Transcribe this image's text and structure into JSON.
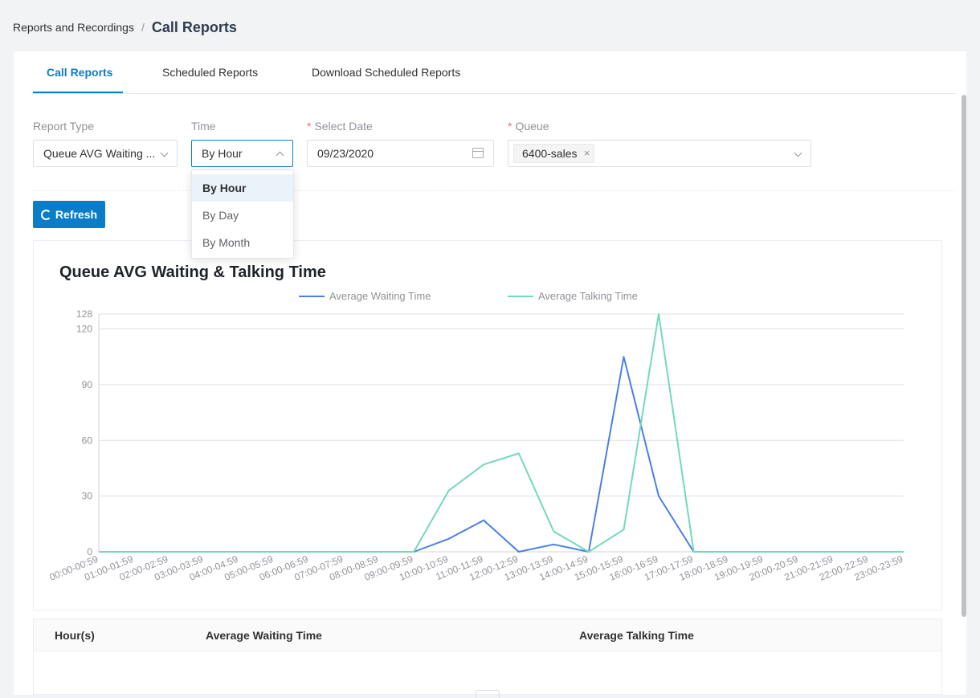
{
  "breadcrumb": {
    "parent": "Reports and Recordings",
    "separator": "/",
    "current": "Call Reports"
  },
  "tabs": [
    {
      "label": "Call Reports",
      "active": true
    },
    {
      "label": "Scheduled Reports",
      "active": false
    },
    {
      "label": "Download Scheduled Reports",
      "active": false
    }
  ],
  "filters": {
    "report_type": {
      "label": "Report Type",
      "value": "Queue AVG Waiting ..."
    },
    "time": {
      "label": "Time",
      "value": "By Hour"
    },
    "select_date": {
      "label": "Select Date",
      "required_mark": "*",
      "value": "09/23/2020"
    },
    "queue": {
      "label": "Queue",
      "required_mark": "*",
      "tag": "6400-sales",
      "tag_close": "×"
    }
  },
  "refresh_button": {
    "label": "Refresh"
  },
  "time_dropdown": {
    "options": [
      "By Hour",
      "By Day",
      "By Month"
    ],
    "selected": "By Hour"
  },
  "chart_data": {
    "type": "line",
    "title": "Queue AVG Waiting & Talking Time",
    "categories": [
      "00:00-00:59",
      "01:00-01:59",
      "02:00-02:59",
      "03:00-03:59",
      "04:00-04:59",
      "05:00-05:59",
      "06:00-06:59",
      "07:00-07:59",
      "08:00-08:59",
      "09:00-09:59",
      "10:00-10:59",
      "11:00-11:59",
      "12:00-12:59",
      "13:00-13:59",
      "14:00-14:59",
      "15:00-15:59",
      "16:00-16:59",
      "17:00-17:59",
      "18:00-18:59",
      "19:00-19:59",
      "20:00-20:59",
      "21:00-21:59",
      "22:00-22:59",
      "23:00-23:59"
    ],
    "series": [
      {
        "name": "Average Waiting Time",
        "color": "#4a7fe4",
        "values": [
          0,
          0,
          0,
          0,
          0,
          0,
          0,
          0,
          0,
          0,
          7,
          17,
          0,
          4,
          0,
          105,
          30,
          0,
          0,
          0,
          0,
          0,
          0,
          0
        ]
      },
      {
        "name": "Average Talking Time",
        "color": "#71dbb3",
        "values": [
          0,
          0,
          0,
          0,
          0,
          0,
          0,
          0,
          0,
          0,
          33,
          47,
          53,
          11,
          0,
          12,
          128,
          0,
          0,
          0,
          0,
          0,
          0,
          0
        ]
      }
    ],
    "y_ticks": [
      0,
      30,
      60,
      90,
      120,
      128
    ],
    "ylim": [
      0,
      128
    ],
    "grid": true,
    "legend": "top-center"
  },
  "table": {
    "columns": [
      "Hour(s)",
      "Average Waiting Time",
      "Average Talking Time"
    ],
    "rows": []
  }
}
